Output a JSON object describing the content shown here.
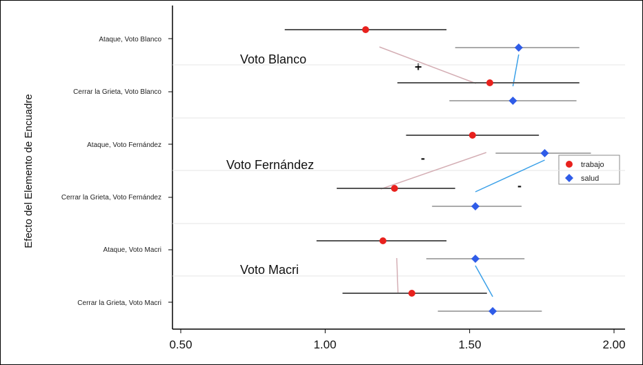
{
  "chart_data": {
    "type": "scatter",
    "ylabel": "Efecto del Elemento de Encuadre",
    "xlim": [
      0.5,
      2.0
    ],
    "xticks": [
      "0.50",
      "1.00",
      "1.50",
      "2.00"
    ],
    "xtick_values": [
      0.5,
      1.0,
      1.5,
      2.0
    ],
    "grid": "horizontal",
    "legend_position": "right",
    "colors": {
      "trabajo": "#e8211d",
      "salud": "#2f5ce8",
      "ci_trabajo": "#555555",
      "ci_salud": "#aaaaaa",
      "connector_trabajo": "#d4aeb4",
      "connector_salud": "#3aa0e8"
    },
    "categories": [
      "Ataque, Voto Blanco",
      "Cerrar la Grieta, Voto Blanco",
      "Ataque, Voto Fernández",
      "Cerrar la Grieta, Voto Fernández",
      "Ataque, Voto Macri",
      "Cerrar la Grieta, Voto Macri"
    ],
    "series": [
      {
        "name": "trabajo",
        "marker": "circle",
        "values": [
          1.14,
          1.57,
          1.51,
          1.24,
          1.2,
          1.3
        ],
        "ci_low": [
          0.86,
          1.25,
          1.28,
          1.04,
          0.97,
          1.06
        ],
        "ci_high": [
          1.42,
          1.88,
          1.74,
          1.45,
          1.42,
          1.56
        ]
      },
      {
        "name": "salud",
        "marker": "diamond",
        "values": [
          1.67,
          1.65,
          1.76,
          1.52,
          1.52,
          1.58
        ],
        "ci_low": [
          1.45,
          1.43,
          1.59,
          1.37,
          1.35,
          1.39
        ],
        "ci_high": [
          1.88,
          1.87,
          1.92,
          1.68,
          1.69,
          1.75
        ]
      }
    ],
    "group_labels": [
      "Voto Blanco",
      "Voto Fernández",
      "Voto Macri"
    ],
    "annotations": [
      "+",
      "-",
      "-"
    ]
  }
}
